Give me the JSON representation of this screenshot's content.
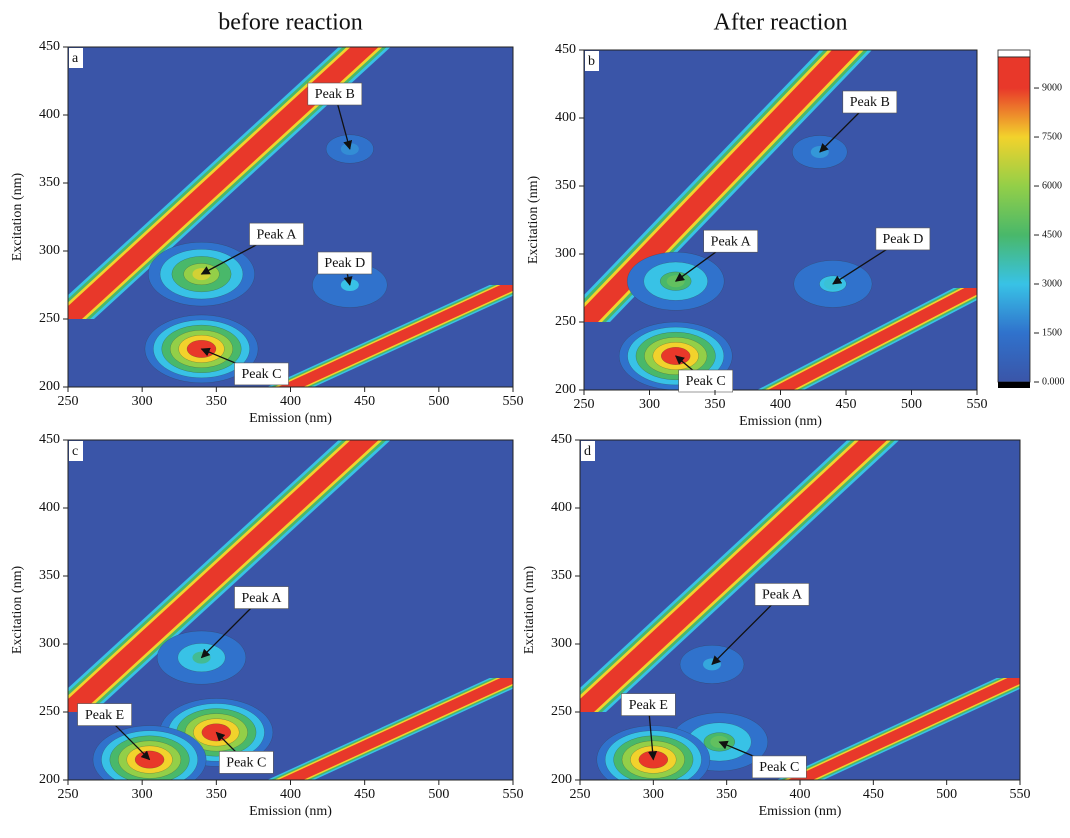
{
  "chart_data": [
    {
      "type": "contour",
      "title": "before reaction",
      "panel": "a",
      "xlabel": "Emission (nm)",
      "ylabel": "Excitation (nm)",
      "xlim": [
        250,
        550
      ],
      "xticks": [
        250,
        300,
        350,
        400,
        450,
        500,
        550
      ],
      "ylim": [
        200,
        450
      ],
      "yticks": [
        200,
        250,
        300,
        350,
        400,
        450
      ],
      "peaks": [
        {
          "label": "Peak A",
          "x": 340,
          "y": 283,
          "value": 7000
        },
        {
          "label": "Peak B",
          "x": 440,
          "y": 375,
          "value": 2000
        },
        {
          "label": "Peak C",
          "x": 340,
          "y": 228,
          "value": 9800
        },
        {
          "label": "Peak D",
          "x": 440,
          "y": 275,
          "value": 3000
        }
      ]
    },
    {
      "type": "contour",
      "title": "After reaction",
      "panel": "b",
      "xlabel": "Emission (nm)",
      "ylabel": "Excitation (nm)",
      "xlim": [
        250,
        550
      ],
      "xticks": [
        250,
        300,
        350,
        400,
        450,
        500,
        550
      ],
      "ylim": [
        200,
        450
      ],
      "yticks": [
        200,
        250,
        300,
        350,
        400,
        450
      ],
      "peaks": [
        {
          "label": "Peak A",
          "x": 320,
          "y": 280,
          "value": 5000
        },
        {
          "label": "Peak B",
          "x": 430,
          "y": 375,
          "value": 2200
        },
        {
          "label": "Peak C",
          "x": 320,
          "y": 225,
          "value": 9800
        },
        {
          "label": "Peak D",
          "x": 440,
          "y": 278,
          "value": 3200
        }
      ]
    },
    {
      "type": "contour",
      "panel": "c",
      "xlabel": "Emission (nm)",
      "ylabel": "Excitation (nm)",
      "xlim": [
        250,
        550
      ],
      "xticks": [
        250,
        300,
        350,
        400,
        450,
        500,
        550
      ],
      "ylim": [
        200,
        450
      ],
      "yticks": [
        200,
        250,
        300,
        350,
        400,
        450
      ],
      "peaks": [
        {
          "label": "Peak A",
          "x": 340,
          "y": 290,
          "value": 4000
        },
        {
          "label": "Peak C",
          "x": 350,
          "y": 235,
          "value": 9800
        },
        {
          "label": "Peak E",
          "x": 305,
          "y": 215,
          "value": 9800
        }
      ]
    },
    {
      "type": "contour",
      "panel": "d",
      "xlabel": "Emission (nm)",
      "ylabel": "Excitation (nm)",
      "xlim": [
        250,
        550
      ],
      "xticks": [
        250,
        300,
        350,
        400,
        450,
        500,
        550
      ],
      "ylim": [
        200,
        450
      ],
      "yticks": [
        200,
        250,
        300,
        350,
        400,
        450
      ],
      "peaks": [
        {
          "label": "Peak A",
          "x": 340,
          "y": 285,
          "value": 2500
        },
        {
          "label": "Peak C",
          "x": 345,
          "y": 228,
          "value": 5000
        },
        {
          "label": "Peak E",
          "x": 300,
          "y": 215,
          "value": 9800
        }
      ]
    },
    {
      "type": "colorbar",
      "clim": [
        0,
        9950
      ],
      "ticks": [
        {
          "value": 0,
          "label": "0.000"
        },
        1500,
        3000,
        4500,
        6000,
        7500,
        9000
      ],
      "colors": [
        "#3a55a8",
        "#3072cc",
        "#38c2e6",
        "#49b86a",
        "#93cf48",
        "#f2d22c",
        "#e8382a"
      ]
    }
  ]
}
